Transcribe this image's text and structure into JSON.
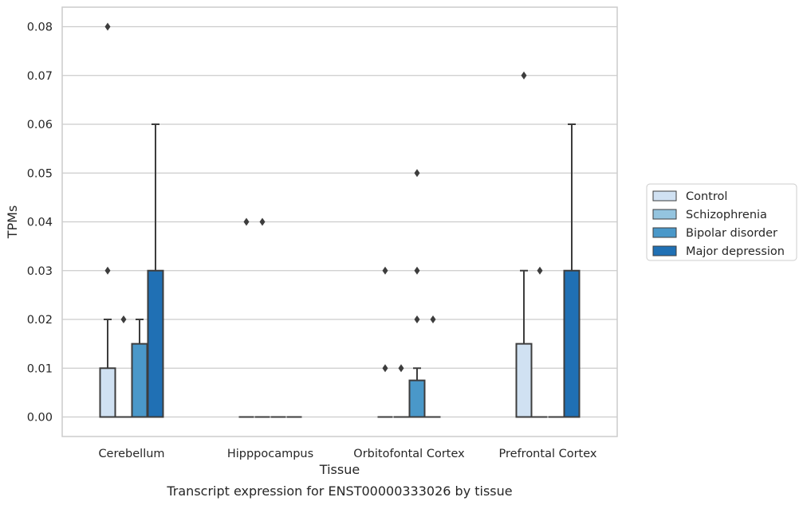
{
  "caption": "Transcript expression for ENST00000333026 by tissue",
  "chart_data": {
    "type": "box",
    "xlabel": "Tissue",
    "ylabel": "TPMs",
    "ylim": [
      -0.004,
      0.084
    ],
    "yticks": [
      "0.00",
      "0.01",
      "0.02",
      "0.03",
      "0.04",
      "0.05",
      "0.06",
      "0.07",
      "0.08"
    ],
    "grid": "horizontal",
    "legend_position": "right",
    "categories": [
      "Cerebellum",
      "Hipppocampus",
      "Orbitofontal Cortex",
      "Prefrontal Cortex"
    ],
    "series": [
      {
        "name": "Control",
        "color": "#d0e1f2",
        "boxes": [
          {
            "q1": 0,
            "median": 0,
            "q3": 0.01,
            "whisker_low": 0,
            "whisker_high": 0.02,
            "outliers": [
              0.03,
              0.08
            ]
          },
          {
            "q1": 0,
            "median": 0,
            "q3": 0,
            "whisker_low": 0,
            "whisker_high": 0,
            "outliers": [
              0.04
            ]
          },
          {
            "q1": 0,
            "median": 0,
            "q3": 0,
            "whisker_low": 0,
            "whisker_high": 0,
            "outliers": [
              0.01,
              0.03
            ]
          },
          {
            "q1": 0,
            "median": 0,
            "q3": 0.015,
            "whisker_low": 0,
            "whisker_high": 0.03,
            "outliers": [
              0.07
            ]
          }
        ]
      },
      {
        "name": "Schizophrenia",
        "color": "#94c4df",
        "boxes": [
          {
            "q1": 0,
            "median": 0,
            "q3": 0,
            "whisker_low": 0,
            "whisker_high": 0,
            "outliers": [
              0.02
            ]
          },
          {
            "q1": 0,
            "median": 0,
            "q3": 0,
            "whisker_low": 0,
            "whisker_high": 0,
            "outliers": [
              0.04
            ]
          },
          {
            "q1": 0,
            "median": 0,
            "q3": 0,
            "whisker_low": 0,
            "whisker_high": 0,
            "outliers": [
              0.01
            ]
          },
          {
            "q1": 0,
            "median": 0,
            "q3": 0,
            "whisker_low": 0,
            "whisker_high": 0,
            "outliers": [
              0.03
            ]
          }
        ]
      },
      {
        "name": "Bipolar disorder",
        "color": "#4a98c9",
        "boxes": [
          {
            "q1": 0,
            "median": 0,
            "q3": 0.015,
            "whisker_low": 0,
            "whisker_high": 0.02,
            "outliers": []
          },
          {
            "q1": 0,
            "median": 0,
            "q3": 0,
            "whisker_low": 0,
            "whisker_high": 0,
            "outliers": []
          },
          {
            "q1": 0,
            "median": 0,
            "q3": 0.0075,
            "whisker_low": 0,
            "whisker_high": 0.01,
            "outliers": [
              0.02,
              0.03,
              0.05
            ]
          },
          {
            "q1": 0,
            "median": 0,
            "q3": 0,
            "whisker_low": 0,
            "whisker_high": 0,
            "outliers": []
          }
        ]
      },
      {
        "name": "Major depression",
        "color": "#2070b4",
        "boxes": [
          {
            "q1": 0,
            "median": 0,
            "q3": 0.03,
            "whisker_low": 0,
            "whisker_high": 0.06,
            "outliers": []
          },
          {
            "q1": 0,
            "median": 0,
            "q3": 0,
            "whisker_low": 0,
            "whisker_high": 0,
            "outliers": []
          },
          {
            "q1": 0,
            "median": 0,
            "q3": 0,
            "whisker_low": 0,
            "whisker_high": 0,
            "outliers": [
              0.02
            ]
          },
          {
            "q1": 0,
            "median": 0,
            "q3": 0.03,
            "whisker_low": 0,
            "whisker_high": 0.06,
            "outliers": []
          }
        ]
      }
    ]
  }
}
